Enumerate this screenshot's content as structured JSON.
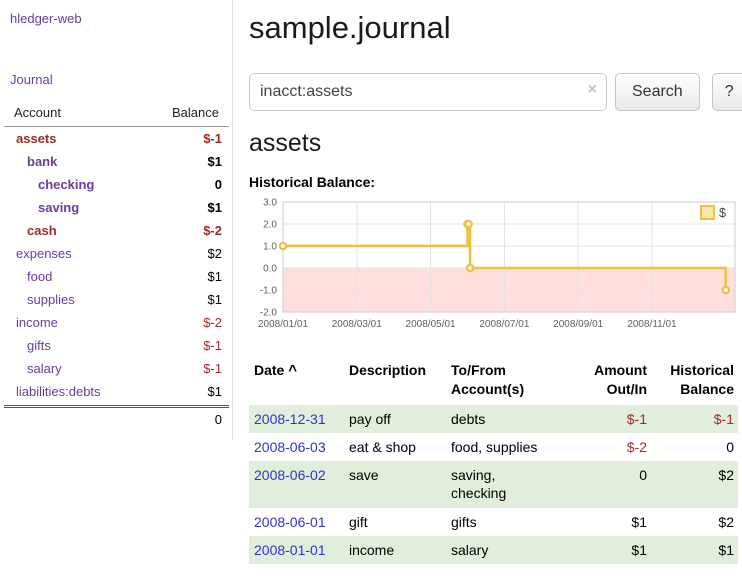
{
  "app": {
    "title": "hledger-web"
  },
  "sidebar": {
    "journal_link": "Journal",
    "accounts": {
      "header_account": "Account",
      "header_balance": "Balance",
      "rows": [
        {
          "name": "assets",
          "balance": "$-1",
          "level": 0,
          "bold": true,
          "neg_name": true,
          "neg_bal": true
        },
        {
          "name": "bank",
          "balance": "$1",
          "level": 1,
          "bold": true,
          "neg_name": false,
          "neg_bal": false
        },
        {
          "name": "checking",
          "balance": "0",
          "level": 2,
          "bold": true,
          "neg_name": false,
          "neg_bal": false
        },
        {
          "name": "saving",
          "balance": "$1",
          "level": 2,
          "bold": true,
          "neg_name": false,
          "neg_bal": false
        },
        {
          "name": "cash",
          "balance": "$-2",
          "level": 1,
          "bold": true,
          "neg_name": true,
          "neg_bal": true
        },
        {
          "name": "expenses",
          "balance": "$2",
          "level": 0,
          "bold": false,
          "neg_name": false,
          "neg_bal": false
        },
        {
          "name": "food",
          "balance": "$1",
          "level": 1,
          "bold": false,
          "neg_name": false,
          "neg_bal": false
        },
        {
          "name": "supplies",
          "balance": "$1",
          "level": 1,
          "bold": false,
          "neg_name": false,
          "neg_bal": false
        },
        {
          "name": "income",
          "balance": "$-2",
          "level": 0,
          "bold": false,
          "neg_name": false,
          "neg_bal": true
        },
        {
          "name": "gifts",
          "balance": "$-1",
          "level": 1,
          "bold": false,
          "neg_name": false,
          "neg_bal": true
        },
        {
          "name": "salary",
          "balance": "$-1",
          "level": 1,
          "bold": false,
          "neg_name": false,
          "neg_bal": true
        },
        {
          "name": "liabilities:debts",
          "balance": "$1",
          "level": 0,
          "bold": false,
          "neg_name": false,
          "neg_bal": false
        }
      ],
      "total": "0"
    }
  },
  "main": {
    "title": "sample.journal",
    "search": {
      "value": "inacct:assets",
      "clear_icon": "×",
      "search_button": "Search",
      "help_button": "?"
    },
    "section_title": "assets",
    "chart_title": "Historical Balance:"
  },
  "chart_data": {
    "type": "line",
    "title": "Historical Balance",
    "x_range": [
      0,
      12.25
    ],
    "y_range": [
      -2,
      3
    ],
    "grid": true,
    "legend_position": "top-right",
    "legend": {
      "label": "$"
    },
    "negative_region_color": "#ffdede",
    "series": [
      {
        "name": "$",
        "color": "#edc240",
        "step": true,
        "points": [
          {
            "date": "2008-01-01",
            "x": 0,
            "y": 1
          },
          {
            "date": "2008-06-01",
            "x": 5.0,
            "y": 2
          },
          {
            "date": "2008-06-02",
            "x": 5.03,
            "y": 2
          },
          {
            "date": "2008-06-03",
            "x": 5.07,
            "y": 0
          },
          {
            "date": "2008-12-31",
            "x": 12.0,
            "y": -1
          }
        ]
      }
    ],
    "x_ticks": [
      {
        "x": 0,
        "label": "2008/01/01"
      },
      {
        "x": 2,
        "label": "2008/03/01"
      },
      {
        "x": 4,
        "label": "2008/05/01"
      },
      {
        "x": 6,
        "label": "2008/07/01"
      },
      {
        "x": 8,
        "label": "2008/09/01"
      },
      {
        "x": 10,
        "label": "2008/11/01"
      }
    ],
    "y_ticks": [
      {
        "y": 3,
        "label": "3.0"
      },
      {
        "y": 2,
        "label": "2.0"
      },
      {
        "y": 1,
        "label": "1.0"
      },
      {
        "y": 0,
        "label": "0.0"
      },
      {
        "y": -1,
        "label": "-1.0"
      },
      {
        "y": -2,
        "label": "-2.0"
      }
    ]
  },
  "register": {
    "headers": {
      "date": "Date",
      "sort_caret": "^",
      "description": "Description",
      "accounts": "To/From\nAccount(s)",
      "amount": "Amount\nOut/In",
      "balance": "Historical\nBalance"
    },
    "rows": [
      {
        "date": "2008-12-31",
        "description": "pay off",
        "accounts": "debts",
        "amount": "$-1",
        "balance": "$-1",
        "amount_neg": true,
        "balance_neg": true
      },
      {
        "date": "2008-06-03",
        "description": "eat & shop",
        "accounts": "food, supplies",
        "amount": "$-2",
        "balance": "0",
        "amount_neg": true,
        "balance_neg": false
      },
      {
        "date": "2008-06-02",
        "description": "save",
        "accounts": "saving,\nchecking",
        "amount": "0",
        "balance": "$2",
        "amount_neg": false,
        "balance_neg": false
      },
      {
        "date": "2008-06-01",
        "description": "gift",
        "accounts": "gifts",
        "amount": "$1",
        "balance": "$2",
        "amount_neg": false,
        "balance_neg": false
      },
      {
        "date": "2008-01-01",
        "description": "income",
        "accounts": "salary",
        "amount": "$1",
        "balance": "$1",
        "amount_neg": false,
        "balance_neg": false
      }
    ]
  },
  "colors": {
    "link_purple": "#6a3d9a",
    "negative_red": "#9a2b2b",
    "row_green": "#e1eedc",
    "date_link_blue": "#3333cc",
    "chart_line_gold": "#edc240",
    "chart_negative_bg": "#ffdede"
  }
}
